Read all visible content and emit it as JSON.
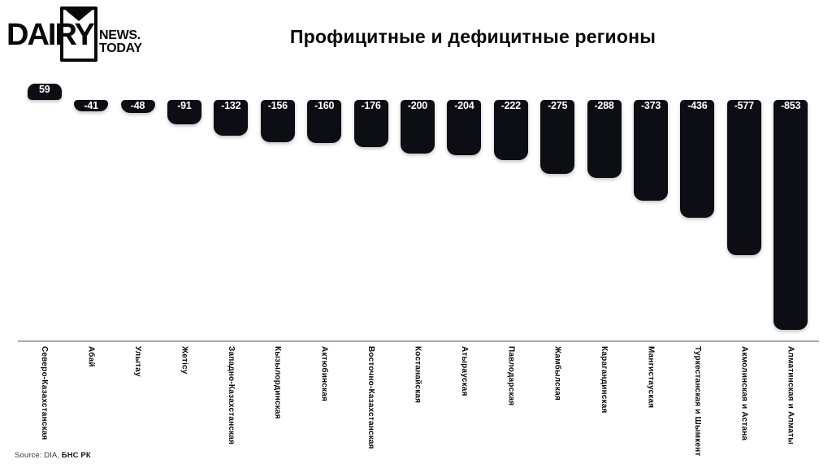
{
  "logo": {
    "brand": "DAIRY",
    "news_line1": "NEWS.",
    "news_line2": "TODAY"
  },
  "title": "Профицитные и дефицитные регионы",
  "source": {
    "prefix": "Source: DIA, ",
    "bold": "БНС РК"
  },
  "chart_data": {
    "type": "bar",
    "title": "Профицитные и дефицитные регионы",
    "categories": [
      "Северо-Казахстанская",
      "Абай",
      "Улытау",
      "Жетісу",
      "Западно-Казахстанская",
      "Кызылординская",
      "Актюбинская",
      "Восточно-Казахстанская",
      "Костанайская",
      "Атырауская",
      "Павлодарская",
      "Жамбылская",
      "Карагандинская",
      "Мангистауская",
      "Туркестанская и Шымкент",
      "Акмолинская и Астана",
      "Алматинская и Алматы"
    ],
    "values": [
      59,
      -41,
      -48,
      -91,
      -132,
      -156,
      -160,
      -176,
      -200,
      -204,
      -222,
      -275,
      -288,
      -373,
      -436,
      -577,
      -853
    ],
    "ylim": [
      -900,
      100
    ],
    "baseline": 0,
    "bar_color": "#0d0e14",
    "value_label_color": "#ffffff",
    "axis_line_color": "#a9a9a9",
    "grid": false,
    "legend": false,
    "value_labels_position": "inside-top",
    "category_labels_rotation": 90
  }
}
